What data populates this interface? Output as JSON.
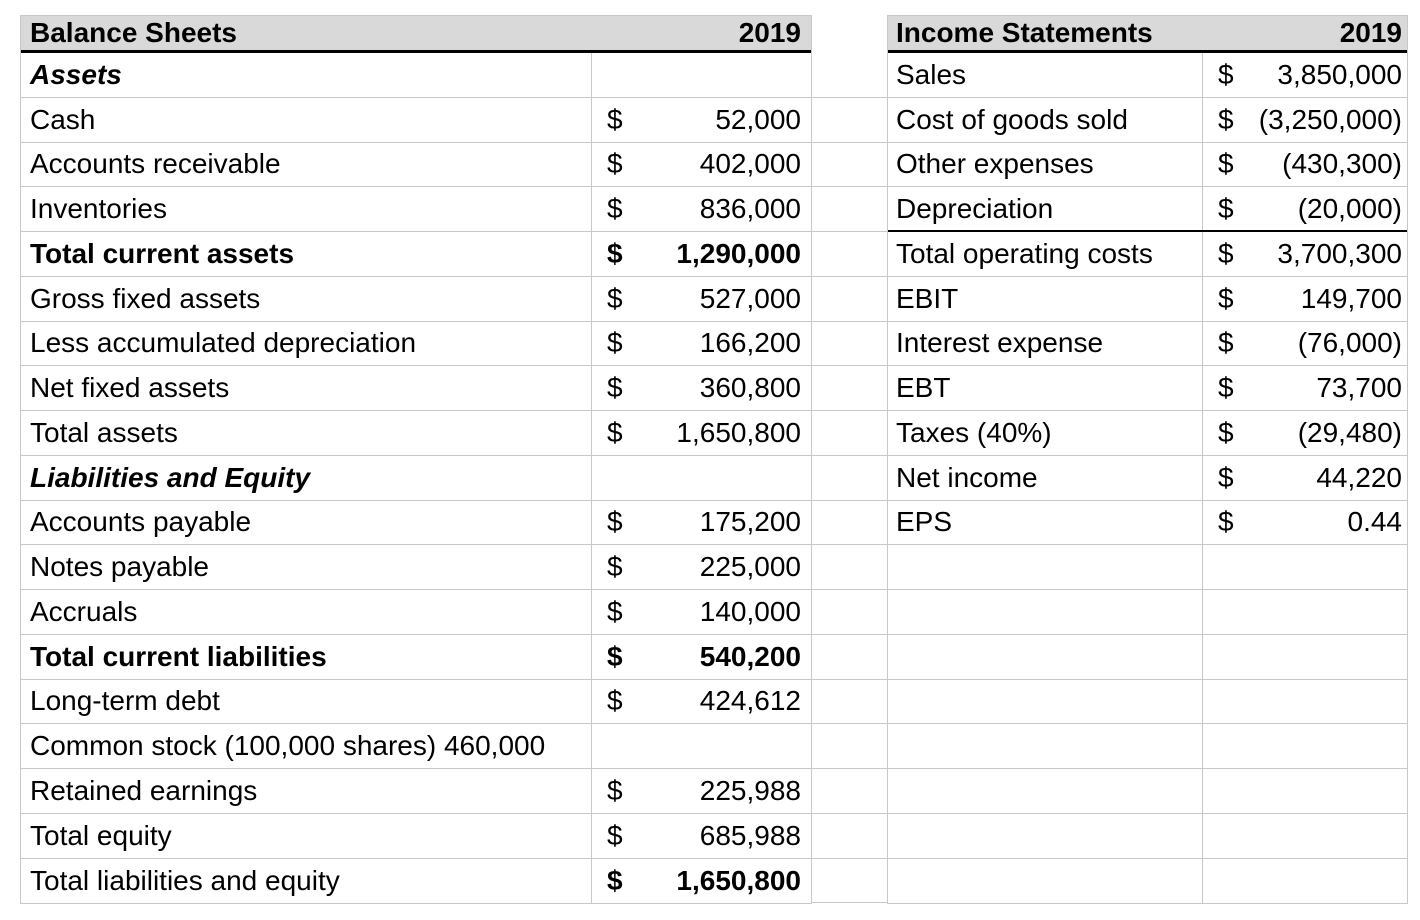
{
  "colors": {
    "header_fill": "#d9d9d9",
    "grid_line": "#c8c8c8",
    "strong_rule": "#000000",
    "text": "#000000",
    "background": "#ffffff"
  },
  "balance_sheet": {
    "title": "Balance Sheets",
    "year": "2019",
    "rows": [
      {
        "label": "Assets"
      },
      {
        "label": "Cash",
        "currency": "$",
        "value": "52,000"
      },
      {
        "label": "Accounts receivable",
        "currency": "$",
        "value": "402,000"
      },
      {
        "label": "Inventories",
        "currency": "$",
        "value": "836,000"
      },
      {
        "label": "Total current assets",
        "currency": "$",
        "value": "1,290,000"
      },
      {
        "label": "Gross fixed assets",
        "currency": "$",
        "value": "527,000"
      },
      {
        "label": "Less accumulated depreciation",
        "currency": "$",
        "value": "166,200"
      },
      {
        "label": "Net fixed assets",
        "currency": "$",
        "value": "360,800"
      },
      {
        "label": "Total assets",
        "currency": "$",
        "value": "1,650,800"
      },
      {
        "label": "Liabilities and Equity"
      },
      {
        "label": "Accounts payable",
        "currency": "$",
        "value": "175,200"
      },
      {
        "label": "Notes payable",
        "currency": "$",
        "value": "225,000"
      },
      {
        "label": "Accruals",
        "currency": "$",
        "value": "140,000"
      },
      {
        "label": "Total current liabilities",
        "currency": "$",
        "value": "540,200"
      },
      {
        "label": "Long-term debt",
        "currency": "$",
        "value": "424,612"
      },
      {
        "label": "Common stock (100,000 shares) 460,000"
      },
      {
        "label": "Retained earnings",
        "currency": "$",
        "value": "225,988"
      },
      {
        "label": "Total equity",
        "currency": "$",
        "value": "685,988"
      },
      {
        "label": "Total liabilities and equity",
        "currency": "$",
        "value": "1,650,800"
      }
    ]
  },
  "income_statement": {
    "title": "Income Statements",
    "year": "2019",
    "rows": [
      {
        "label": "Sales",
        "currency": "$",
        "value": "3,850,000"
      },
      {
        "label": "Cost of goods sold",
        "currency": "$",
        "value": "(3,250,000)"
      },
      {
        "label": "Other expenses",
        "currency": "$",
        "value": "(430,300)"
      },
      {
        "label": "Depreciation",
        "currency": "$",
        "value": "(20,000)"
      },
      {
        "label": "Total operating costs",
        "currency": "$",
        "value": "3,700,300"
      },
      {
        "label": "EBIT",
        "currency": "$",
        "value": "149,700"
      },
      {
        "label": "Interest expense",
        "currency": "$",
        "value": "(76,000)"
      },
      {
        "label": "EBT",
        "currency": "$",
        "value": "73,700"
      },
      {
        "label": "Taxes (40%)",
        "currency": "$",
        "value": "(29,480)"
      },
      {
        "label": "Net income",
        "currency": "$",
        "value": "44,220"
      },
      {
        "label": "EPS",
        "currency": "$",
        "value": "0.44"
      }
    ],
    "empty_row_count": 8
  }
}
